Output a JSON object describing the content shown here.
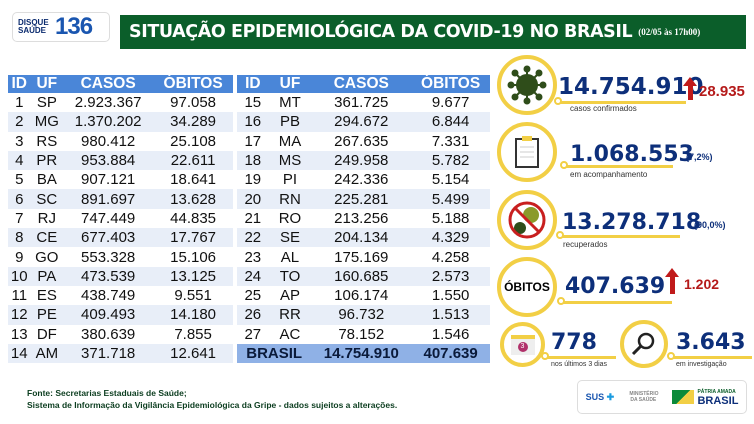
{
  "header": {
    "logo_line1": "DISQUE",
    "logo_line2": "SAÚDE",
    "logo_number": "136",
    "title": "SITUAÇÃO EPIDEMIOLÓGICA DA COVID-19 NO BRASIL",
    "date": "(02/05 às 17h00)"
  },
  "table": {
    "columns": [
      "ID",
      "UF",
      "CASOS",
      "ÓBITOS"
    ],
    "left": [
      [
        "1",
        "SP",
        "2.923.367",
        "97.058"
      ],
      [
        "2",
        "MG",
        "1.370.202",
        "34.289"
      ],
      [
        "3",
        "RS",
        "980.412",
        "25.108"
      ],
      [
        "4",
        "PR",
        "953.884",
        "22.611"
      ],
      [
        "5",
        "BA",
        "907.121",
        "18.641"
      ],
      [
        "6",
        "SC",
        "891.697",
        "13.628"
      ],
      [
        "7",
        "RJ",
        "747.449",
        "44.835"
      ],
      [
        "8",
        "CE",
        "677.403",
        "17.767"
      ],
      [
        "9",
        "GO",
        "553.328",
        "15.106"
      ],
      [
        "10",
        "PA",
        "473.539",
        "13.125"
      ],
      [
        "11",
        "ES",
        "438.749",
        "9.551"
      ],
      [
        "12",
        "PE",
        "409.493",
        "14.180"
      ],
      [
        "13",
        "DF",
        "380.639",
        "7.855"
      ],
      [
        "14",
        "AM",
        "371.718",
        "12.641"
      ]
    ],
    "right": [
      [
        "15",
        "MT",
        "361.725",
        "9.677"
      ],
      [
        "16",
        "PB",
        "294.672",
        "6.844"
      ],
      [
        "17",
        "MA",
        "267.635",
        "7.331"
      ],
      [
        "18",
        "MS",
        "249.958",
        "5.782"
      ],
      [
        "19",
        "PI",
        "242.336",
        "5.154"
      ],
      [
        "20",
        "RN",
        "225.281",
        "5.499"
      ],
      [
        "21",
        "RO",
        "213.256",
        "5.188"
      ],
      [
        "22",
        "SE",
        "204.134",
        "4.329"
      ],
      [
        "23",
        "AL",
        "175.169",
        "4.258"
      ],
      [
        "24",
        "TO",
        "160.685",
        "2.573"
      ],
      [
        "25",
        "AP",
        "106.174",
        "1.550"
      ],
      [
        "26",
        "RR",
        "96.732",
        "1.513"
      ],
      [
        "27",
        "AC",
        "78.152",
        "1.546"
      ]
    ],
    "total": {
      "label": "BRASIL",
      "casos": "14.754.910",
      "obitos": "407.639"
    }
  },
  "stats": {
    "confirmed": {
      "value": "14.754.910",
      "label": "casos confirmados",
      "increase": "28.935",
      "icon": "virus-icon"
    },
    "monitoring": {
      "value": "1.068.553",
      "pct": "(7,2%)",
      "label": "em acompanhamento",
      "icon": "clipboard-icon"
    },
    "recovered": {
      "value": "13.278.718",
      "pct": "(90,0%)",
      "label": "recuperados",
      "icon": "no-virus-icon"
    },
    "deaths": {
      "badge": "ÓBITOS",
      "value": "407.639",
      "increase": "1.202"
    },
    "last3": {
      "value": "778",
      "label": "nos últimos 3 dias",
      "icon": "calendar-icon",
      "calendar_num": "3"
    },
    "investigation": {
      "value": "3.643",
      "label": "em investigação",
      "icon": "magnifier-icon"
    }
  },
  "footer": {
    "line1": "Fonte: Secretarias Estaduais de Saúde;",
    "line2": "Sistema de Informação da Vigilância Epidemiológica da Gripe - dados sujeitos a alterações.",
    "sus": "SUS",
    "ministerio": "MINISTÉRIO DA SAÚDE",
    "patria": "PÁTRIA AMADA",
    "brasil": "BRASIL"
  },
  "colors": {
    "title_bg": "#0b5e2a",
    "table_header": "#4a86d8",
    "accent_yellow": "#f2cf45",
    "number_blue": "#0d2f7a",
    "increase_red": "#b51a1a"
  }
}
